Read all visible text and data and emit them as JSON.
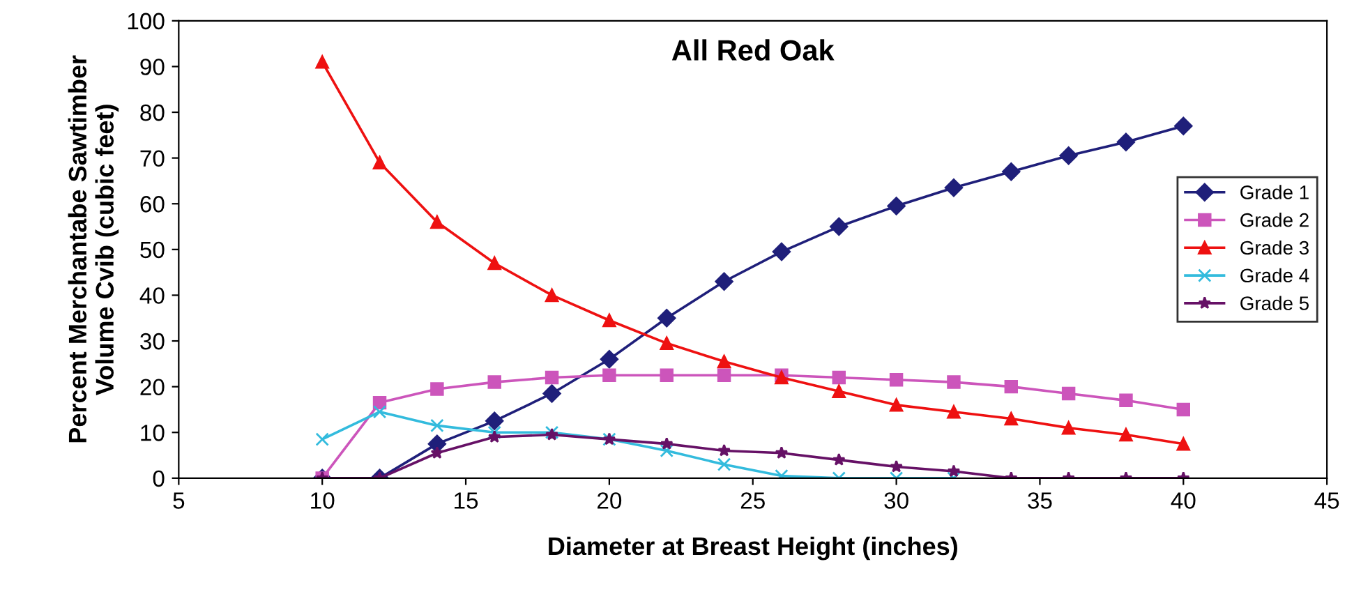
{
  "chart_data": {
    "type": "line",
    "title": "All Red Oak",
    "xlabel": "Diameter at Breast Height (inches)",
    "ylabel": "Percent Merchantabe Sawtimber\nVolume Cvib (cubic feet)",
    "x": [
      10,
      12,
      14,
      16,
      18,
      20,
      22,
      24,
      26,
      28,
      30,
      32,
      34,
      36,
      38,
      40
    ],
    "series": [
      {
        "name": "Grade 1",
        "color": "#1f1f7a",
        "marker": "diamond",
        "values": [
          0,
          0,
          7.5,
          12.5,
          18.5,
          26,
          35,
          43,
          49.5,
          55,
          59.5,
          63.5,
          67,
          70.5,
          73.5,
          77
        ]
      },
      {
        "name": "Grade 2",
        "color": "#cc55bb",
        "marker": "square",
        "values": [
          0,
          16.5,
          19.5,
          21,
          22,
          22.5,
          22.5,
          22.5,
          22.5,
          22,
          21.5,
          21,
          20,
          18.5,
          17,
          15
        ]
      },
      {
        "name": "Grade 3",
        "color": "#ee1111",
        "marker": "triangle",
        "values": [
          91,
          69,
          56,
          47,
          40,
          34.5,
          29.5,
          25.5,
          22,
          19,
          16,
          14.5,
          13,
          11,
          9.5,
          7.5
        ]
      },
      {
        "name": "Grade 4",
        "color": "#33bbdd",
        "marker": "cross",
        "values": [
          8.5,
          14.5,
          11.5,
          10,
          10,
          8.5,
          6,
          3,
          0.5,
          0,
          0,
          0,
          null,
          null,
          null,
          null
        ]
      },
      {
        "name": "Grade 5",
        "color": "#661166",
        "marker": "star",
        "values": [
          0,
          0,
          5.5,
          9,
          9.5,
          8.5,
          7.5,
          6,
          5.5,
          4,
          2.5,
          1.5,
          0,
          0,
          0,
          0
        ]
      }
    ],
    "xlim": [
      5,
      45
    ],
    "xticks": [
      5,
      10,
      15,
      20,
      25,
      30,
      35,
      40,
      45
    ],
    "ylim": [
      0,
      100
    ],
    "yticks": [
      0,
      10,
      20,
      30,
      40,
      50,
      60,
      70,
      80,
      90,
      100
    ],
    "grid": false,
    "legend": "right",
    "line_style": "solid"
  }
}
